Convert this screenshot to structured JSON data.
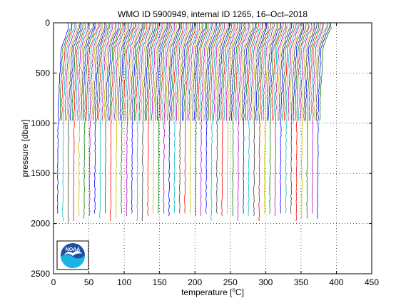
{
  "chart_data": {
    "type": "line",
    "title": "WMO ID 5900949, internal ID 1265, 16–Oct–2018",
    "xlabel_prefix": "temperature [",
    "xlabel_unit": "C",
    "xlabel_suffix": "]",
    "xlabel_degree": "o",
    "ylabel": "pressure [dbar]",
    "xlim": [
      0,
      450
    ],
    "ylim": [
      0,
      2500
    ],
    "y_reversed": true,
    "xticks": [
      0,
      50,
      100,
      150,
      200,
      250,
      300,
      350,
      400,
      450
    ],
    "yticks": [
      0,
      500,
      1000,
      1500,
      2000,
      2500
    ],
    "grid": "dotted",
    "profile_offset_step": 2.5,
    "profile_count": 149,
    "profile_base_offset": 5,
    "colors": [
      "#0000ff",
      "#008000",
      "#ff0000",
      "#00bfbf",
      "#bf00bf",
      "#bfbf00",
      "#404040"
    ],
    "shallow_profile_indices_step": 3
  },
  "logo": {
    "text": "NOAA",
    "colors": {
      "sky": "#1f4fa3",
      "sea": "#19b3e6",
      "bird": "#ffffff"
    }
  }
}
